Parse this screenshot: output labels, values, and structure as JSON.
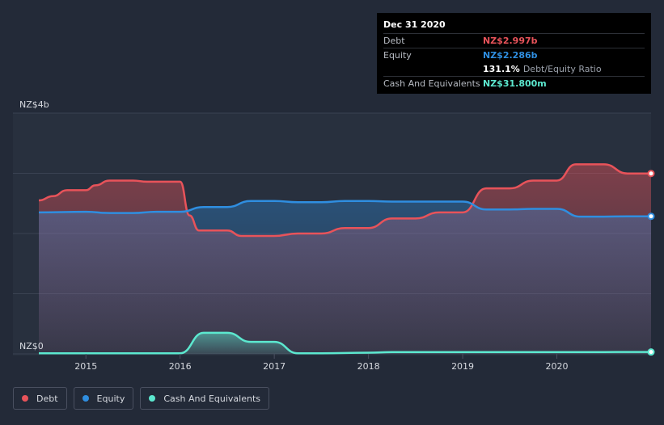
{
  "tooltip": {
    "date": "Dec 31 2020",
    "rows": [
      {
        "label": "Debt",
        "value": "NZ$2.997b",
        "color": "#e8535a"
      },
      {
        "label": "Equity",
        "value": "NZ$2.286b",
        "color": "#2f8ee0"
      },
      {
        "label": "",
        "value": "131.1%",
        "suffix": "Debt/Equity Ratio",
        "color": "#ffffff"
      },
      {
        "label": "Cash And Equivalents",
        "value": "NZ$31.800m",
        "color": "#5ce8cf"
      }
    ]
  },
  "legend": [
    {
      "label": "Debt",
      "color": "#e8535a"
    },
    {
      "label": "Equity",
      "color": "#2f8ee0"
    },
    {
      "label": "Cash And Equivalents",
      "color": "#5ce8cf"
    }
  ],
  "chart_data": {
    "type": "area",
    "ylabel_top": "NZ$4b",
    "ylabel_bottom": "NZ$0",
    "ylim": [
      0,
      4.0
    ],
    "xlim": [
      2014.5,
      2021.0
    ],
    "x_ticks": [
      "2015",
      "2016",
      "2017",
      "2018",
      "2019",
      "2020"
    ],
    "x_tick_values": [
      2015,
      2016,
      2017,
      2018,
      2019,
      2020
    ],
    "grid": true,
    "series": [
      {
        "name": "Debt",
        "color": "#e8535a",
        "x": [
          2014.5,
          2014.65,
          2014.8,
          2015.0,
          2015.1,
          2015.25,
          2015.5,
          2015.65,
          2015.75,
          2016.0,
          2016.1,
          2016.2,
          2016.5,
          2016.65,
          2016.75,
          2017.0,
          2017.25,
          2017.5,
          2017.75,
          2018.0,
          2018.25,
          2018.5,
          2018.75,
          2019.0,
          2019.25,
          2019.5,
          2019.75,
          2020.0,
          2020.2,
          2020.5,
          2020.75,
          2021.0
        ],
        "y": [
          2.55,
          2.62,
          2.72,
          2.72,
          2.8,
          2.88,
          2.88,
          2.86,
          2.86,
          2.86,
          2.3,
          2.05,
          2.05,
          1.96,
          1.96,
          1.96,
          2.0,
          2.0,
          2.09,
          2.09,
          2.25,
          2.25,
          2.35,
          2.35,
          2.75,
          2.75,
          2.88,
          2.88,
          3.15,
          3.15,
          2.997,
          2.997
        ]
      },
      {
        "name": "Equity",
        "color": "#2f8ee0",
        "x": [
          2014.5,
          2015.0,
          2015.25,
          2015.5,
          2015.75,
          2016.0,
          2016.25,
          2016.5,
          2016.75,
          2017.0,
          2017.25,
          2017.5,
          2017.75,
          2018.0,
          2018.25,
          2018.5,
          2018.75,
          2019.0,
          2019.25,
          2019.5,
          2019.75,
          2020.0,
          2020.25,
          2020.5,
          2020.75,
          2021.0
        ],
        "y": [
          2.35,
          2.36,
          2.34,
          2.34,
          2.36,
          2.36,
          2.44,
          2.44,
          2.54,
          2.54,
          2.52,
          2.52,
          2.54,
          2.54,
          2.53,
          2.53,
          2.53,
          2.53,
          2.4,
          2.4,
          2.41,
          2.41,
          2.28,
          2.28,
          2.286,
          2.286
        ]
      },
      {
        "name": "Cash And Equivalents",
        "color": "#5ce8cf",
        "x": [
          2014.5,
          2015.0,
          2015.5,
          2016.0,
          2016.25,
          2016.5,
          2016.75,
          2017.0,
          2017.25,
          2017.5,
          2018.0,
          2018.25,
          2018.5,
          2019.0,
          2019.5,
          2020.0,
          2020.5,
          2021.0
        ],
        "y": [
          0.01,
          0.01,
          0.01,
          0.01,
          0.35,
          0.35,
          0.2,
          0.2,
          0.01,
          0.01,
          0.02,
          0.03,
          0.03,
          0.03,
          0.03,
          0.031,
          0.031,
          0.0318
        ]
      }
    ]
  }
}
